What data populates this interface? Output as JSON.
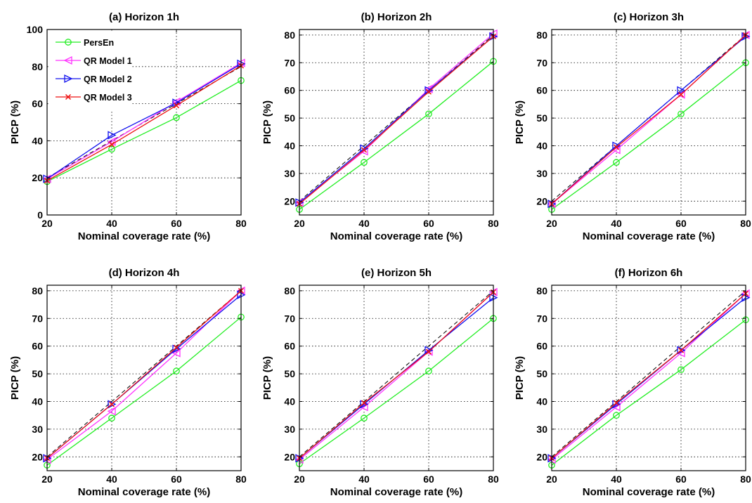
{
  "chart_data": [
    {
      "type": "line",
      "title": "(a) Horizon 1h",
      "xlabel": "Nominal coverage rate (%)",
      "ylabel": "PICP (%)",
      "x": [
        20,
        40,
        60,
        80
      ],
      "xlim": [
        20,
        80
      ],
      "ylim": [
        0,
        100
      ],
      "yticks": [
        0,
        20,
        40,
        60,
        80,
        100
      ],
      "xticks": [
        20,
        40,
        60,
        80
      ],
      "grid": true,
      "legend": "top-left",
      "reference_line": {
        "style": "dashed",
        "color": "#000000",
        "x": [
          20,
          80
        ],
        "y": [
          20,
          80
        ]
      },
      "series": [
        {
          "name": "PersEn",
          "color": "#22ee22",
          "marker": "circle",
          "values": [
            18,
            35.5,
            52.5,
            72.5
          ]
        },
        {
          "name": "QR Model 1",
          "color": "#ff33ff",
          "marker": "triangle-left",
          "values": [
            19.5,
            39.5,
            61,
            82
          ]
        },
        {
          "name": "QR Model 2",
          "color": "#1111ee",
          "marker": "triangle-right",
          "values": [
            19.5,
            43,
            60.5,
            81.5
          ]
        },
        {
          "name": "QR Model 3",
          "color": "#ee1111",
          "marker": "x",
          "values": [
            18.5,
            38,
            59,
            80.5
          ]
        }
      ]
    },
    {
      "type": "line",
      "title": "(b) Horizon 2h",
      "xlabel": "Nominal coverage rate (%)",
      "ylabel": "PICP (%)",
      "x": [
        20,
        40,
        60,
        80
      ],
      "xlim": [
        20,
        80
      ],
      "ylim": [
        15,
        82
      ],
      "yticks": [
        20,
        30,
        40,
        50,
        60,
        70,
        80
      ],
      "xticks": [
        20,
        40,
        60,
        80
      ],
      "grid": true,
      "reference_line": {
        "style": "dashed",
        "color": "#000000",
        "x": [
          20,
          80
        ],
        "y": [
          20,
          80
        ]
      },
      "series": [
        {
          "color": "#22ee22",
          "marker": "circle",
          "values": [
            17,
            34,
            51.5,
            70.5
          ]
        },
        {
          "color": "#ff33ff",
          "marker": "triangle-left",
          "values": [
            19.5,
            38,
            60.5,
            80.5
          ]
        },
        {
          "color": "#1111ee",
          "marker": "triangle-right",
          "values": [
            19.5,
            39,
            60,
            79.5
          ]
        },
        {
          "color": "#ee1111",
          "marker": "x",
          "values": [
            19,
            38.5,
            59.5,
            79.5
          ]
        }
      ]
    },
    {
      "type": "line",
      "title": "(c) Horizon 3h",
      "xlabel": "Nominal coverage rate (%)",
      "ylabel": "PICP (%)",
      "x": [
        20,
        40,
        60,
        80
      ],
      "xlim": [
        20,
        80
      ],
      "ylim": [
        15,
        82
      ],
      "yticks": [
        20,
        30,
        40,
        50,
        60,
        70,
        80
      ],
      "xticks": [
        20,
        40,
        60,
        80
      ],
      "grid": true,
      "reference_line": {
        "style": "dashed",
        "color": "#000000",
        "x": [
          20,
          80
        ],
        "y": [
          20,
          80
        ]
      },
      "series": [
        {
          "color": "#22ee22",
          "marker": "circle",
          "values": [
            17,
            34,
            51.5,
            70
          ]
        },
        {
          "color": "#ff33ff",
          "marker": "triangle-left",
          "values": [
            19,
            38.5,
            58.5,
            80
          ]
        },
        {
          "color": "#1111ee",
          "marker": "triangle-right",
          "values": [
            19,
            40,
            60,
            79.5
          ]
        },
        {
          "color": "#ee1111",
          "marker": "x",
          "values": [
            19,
            39.5,
            58.5,
            80
          ]
        }
      ]
    },
    {
      "type": "line",
      "title": "(d) Horizon 4h",
      "xlabel": "Nominal coverage rate (%)",
      "ylabel": "PICP (%)",
      "x": [
        20,
        40,
        60,
        80
      ],
      "xlim": [
        20,
        80
      ],
      "ylim": [
        15,
        82
      ],
      "yticks": [
        20,
        30,
        40,
        50,
        60,
        70,
        80
      ],
      "xticks": [
        20,
        40,
        60,
        80
      ],
      "grid": true,
      "reference_line": {
        "style": "dashed",
        "color": "#000000",
        "x": [
          20,
          80
        ],
        "y": [
          20,
          80
        ]
      },
      "series": [
        {
          "color": "#22ee22",
          "marker": "circle",
          "values": [
            17,
            34,
            51,
            70.5
          ]
        },
        {
          "color": "#ff33ff",
          "marker": "triangle-left",
          "values": [
            19,
            36.5,
            57.5,
            80
          ]
        },
        {
          "color": "#1111ee",
          "marker": "triangle-right",
          "values": [
            19.5,
            39,
            59,
            78.5
          ]
        },
        {
          "color": "#ee1111",
          "marker": "x",
          "values": [
            19.5,
            39,
            59.5,
            80
          ]
        }
      ]
    },
    {
      "type": "line",
      "title": "(e) Horizon 5h",
      "xlabel": "Nominal coverage rate (%)",
      "ylabel": "PICP (%)",
      "x": [
        20,
        40,
        60,
        80
      ],
      "xlim": [
        20,
        80
      ],
      "ylim": [
        15,
        82
      ],
      "yticks": [
        20,
        30,
        40,
        50,
        60,
        70,
        80
      ],
      "xticks": [
        20,
        40,
        60,
        80
      ],
      "grid": true,
      "reference_line": {
        "style": "dashed",
        "color": "#000000",
        "x": [
          20,
          80
        ],
        "y": [
          20,
          80
        ]
      },
      "series": [
        {
          "color": "#22ee22",
          "marker": "circle",
          "values": [
            17.5,
            34,
            51,
            70
          ]
        },
        {
          "color": "#ff33ff",
          "marker": "triangle-left",
          "values": [
            19,
            38,
            58,
            79.5
          ]
        },
        {
          "color": "#1111ee",
          "marker": "triangle-right",
          "values": [
            19.5,
            39,
            58.5,
            77.5
          ]
        },
        {
          "color": "#ee1111",
          "marker": "x",
          "values": [
            19.5,
            39.5,
            58,
            79.5
          ]
        }
      ]
    },
    {
      "type": "line",
      "title": "(f) Horizon 6h",
      "xlabel": "Nominal coverage rate (%)",
      "ylabel": "PICP (%)",
      "x": [
        20,
        40,
        60,
        80
      ],
      "xlim": [
        20,
        80
      ],
      "ylim": [
        15,
        82
      ],
      "yticks": [
        20,
        30,
        40,
        50,
        60,
        70,
        80
      ],
      "xticks": [
        20,
        40,
        60,
        80
      ],
      "grid": true,
      "reference_line": {
        "style": "dashed",
        "color": "#000000",
        "x": [
          20,
          80
        ],
        "y": [
          20,
          80
        ]
      },
      "series": [
        {
          "color": "#22ee22",
          "marker": "circle",
          "values": [
            17,
            35,
            51.5,
            69.5
          ]
        },
        {
          "color": "#ff33ff",
          "marker": "triangle-left",
          "values": [
            19,
            38,
            57.5,
            79
          ]
        },
        {
          "color": "#1111ee",
          "marker": "triangle-right",
          "values": [
            19.5,
            39,
            58.5,
            77.5
          ]
        },
        {
          "color": "#ee1111",
          "marker": "x",
          "values": [
            19.5,
            39.5,
            58.5,
            79
          ]
        }
      ]
    }
  ]
}
